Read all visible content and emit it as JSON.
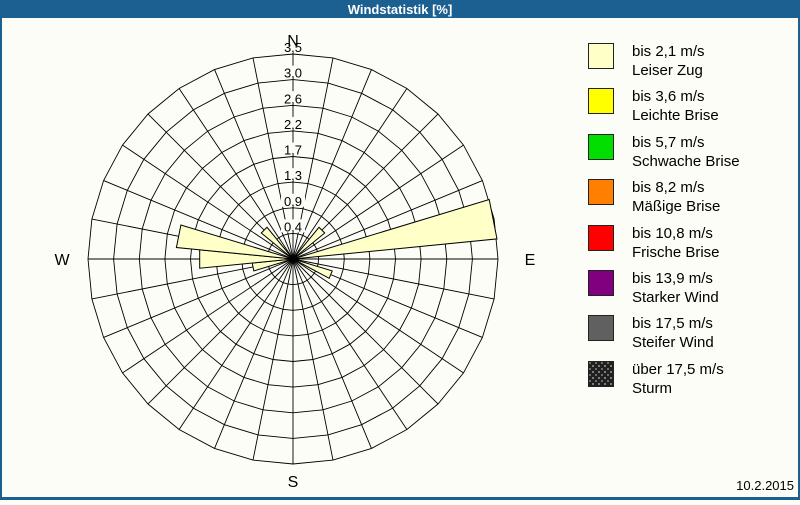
{
  "window": {
    "title": "Windstatistik [%]"
  },
  "footer": {
    "date": "10.2.2015"
  },
  "chart_data": {
    "type": "windrose-polar-bar",
    "title": "Windstatistik [%]",
    "units": "%",
    "sector_count": 32,
    "sector_width_deg": 11.25,
    "radial_axis": {
      "max": 3.5,
      "rings": 8,
      "tick_labels": [
        "0,4",
        "0,9",
        "1,3",
        "1,7",
        "2,2",
        "2,6",
        "3,0",
        "3,5"
      ],
      "tick_values": [
        0.4375,
        0.875,
        1.3125,
        1.75,
        2.1875,
        2.625,
        3.0625,
        3.5
      ]
    },
    "compass_labels": {
      "north": "N",
      "east": "E",
      "south": "S",
      "west": "W"
    },
    "petals": [
      {
        "direction": "NE",
        "azimuth_deg": 45,
        "value": 0.7
      },
      {
        "direction": "EbN",
        "azimuth_deg": 78.75,
        "value": 3.5
      },
      {
        "direction": "ESE",
        "azimuth_deg": 112.5,
        "value": 0.7
      },
      {
        "direction": "WbS",
        "azimuth_deg": 258.75,
        "value": 0.7
      },
      {
        "direction": "W",
        "azimuth_deg": 270,
        "value": 1.6
      },
      {
        "direction": "WbN",
        "azimuth_deg": 281.25,
        "value": 2.0
      },
      {
        "direction": "NW",
        "azimuth_deg": 315,
        "value": 0.7
      }
    ],
    "petal_fill": "#FFFFC8",
    "grid_color": "#000000"
  },
  "legend": {
    "items": [
      {
        "speed": "bis 2,1 m/s",
        "name": "Leiser Zug",
        "color": "#FFFFC8",
        "pattern": "solid"
      },
      {
        "speed": "bis 3,6 m/s",
        "name": "Leichte Brise",
        "color": "#FFFF00",
        "pattern": "solid"
      },
      {
        "speed": "bis 5,7 m/s",
        "name": "Schwache Brise",
        "color": "#00DF00",
        "pattern": "solid"
      },
      {
        "speed": "bis 8,2 m/s",
        "name": "Mäßige Brise",
        "color": "#FF8000",
        "pattern": "solid"
      },
      {
        "speed": "bis 10,8 m/s",
        "name": "Frische Brise",
        "color": "#FF0000",
        "pattern": "solid"
      },
      {
        "speed": "bis 13,9 m/s",
        "name": "Starker Wind",
        "color": "#800080",
        "pattern": "solid"
      },
      {
        "speed": "bis 17,5 m/s",
        "name": "Steifer Wind",
        "color": "#606060",
        "pattern": "solid"
      },
      {
        "speed": "über 17,5 m/s",
        "name": "Sturm",
        "color": "#202020",
        "pattern": "speckled"
      }
    ]
  },
  "colors": {
    "frame": "#1B6090",
    "background": "#FBFDF6",
    "titlebar_text": "#FFFFFF"
  }
}
